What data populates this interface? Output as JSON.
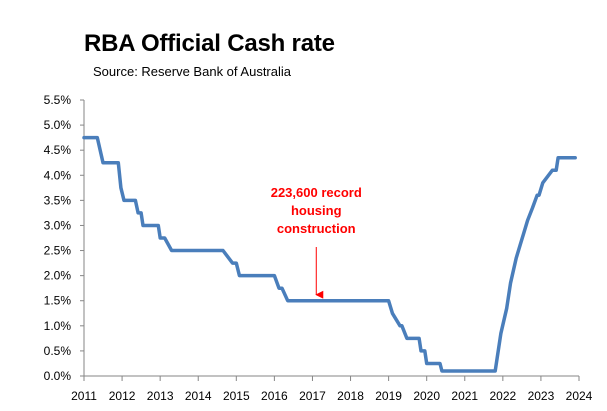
{
  "chart_data": {
    "type": "line",
    "title": "RBA Official Cash rate",
    "subtitle": "Source: Reserve Bank of Australia",
    "xlabel": "",
    "ylabel": "",
    "xlim": [
      2011,
      2024
    ],
    "ylim": [
      0,
      5.5
    ],
    "grid": false,
    "legend": "none",
    "x_ticks": [
      "2011",
      "2012",
      "2013",
      "2014",
      "2015",
      "2016",
      "2017",
      "2018",
      "2019",
      "2020",
      "2021",
      "2022",
      "2023",
      "2024"
    ],
    "y_ticks": [
      "0.0%",
      "0.5%",
      "1.0%",
      "1.5%",
      "2.0%",
      "2.5%",
      "3.0%",
      "3.5%",
      "4.0%",
      "4.5%",
      "5.0%",
      "5.5%"
    ],
    "y_tick_values": [
      0,
      0.5,
      1.0,
      1.5,
      2.0,
      2.5,
      3.0,
      3.5,
      4.0,
      4.5,
      5.0,
      5.5
    ],
    "series": [
      {
        "color": "#4a7ebb",
        "x": [
          2011.0,
          2011.35,
          2011.5,
          2011.9,
          2011.97,
          2012.05,
          2012.35,
          2012.42,
          2012.5,
          2012.55,
          2012.62,
          2012.95,
          2013.0,
          2013.12,
          2013.3,
          2013.38,
          2013.45,
          2014.6,
          2014.65,
          2014.9,
          2015.0,
          2015.08,
          2015.95,
          2016.0,
          2016.12,
          2016.2,
          2016.35,
          2016.45,
          2019.0,
          2019.1,
          2019.3,
          2019.35,
          2019.48,
          2019.8,
          2019.85,
          2019.95,
          2020.0,
          2020.15,
          2020.35,
          2020.4,
          2020.42,
          2020.5,
          2021.8,
          2021.85,
          2021.95,
          2022.1,
          2022.2,
          2022.35,
          2022.45,
          2022.55,
          2022.65,
          2022.78,
          2022.9,
          2022.95,
          2023.05,
          2023.3,
          2023.4,
          2023.45,
          2023.55,
          2023.9
        ],
        "y": [
          4.75,
          4.75,
          4.25,
          4.25,
          3.75,
          3.5,
          3.5,
          3.25,
          3.25,
          3.0,
          3.0,
          3.0,
          2.75,
          2.75,
          2.5,
          2.5,
          2.5,
          2.5,
          2.5,
          2.25,
          2.25,
          2.0,
          2.0,
          2.0,
          1.75,
          1.75,
          1.5,
          1.5,
          1.5,
          1.25,
          1.0,
          1.0,
          0.75,
          0.75,
          0.5,
          0.5,
          0.25,
          0.25,
          0.25,
          0.1,
          0.1,
          0.1,
          0.1,
          0.35,
          0.85,
          1.35,
          1.85,
          2.35,
          2.6,
          2.85,
          3.1,
          3.35,
          3.6,
          3.6,
          3.85,
          4.1,
          4.1,
          4.35,
          4.35,
          4.35
        ]
      }
    ],
    "annotations": [
      {
        "lines": [
          "223,600 record",
          "housing",
          "construction"
        ],
        "color": "#ff0000",
        "x": 2017.1,
        "arrow_to": [
          2017.1,
          1.62
        ]
      }
    ]
  }
}
